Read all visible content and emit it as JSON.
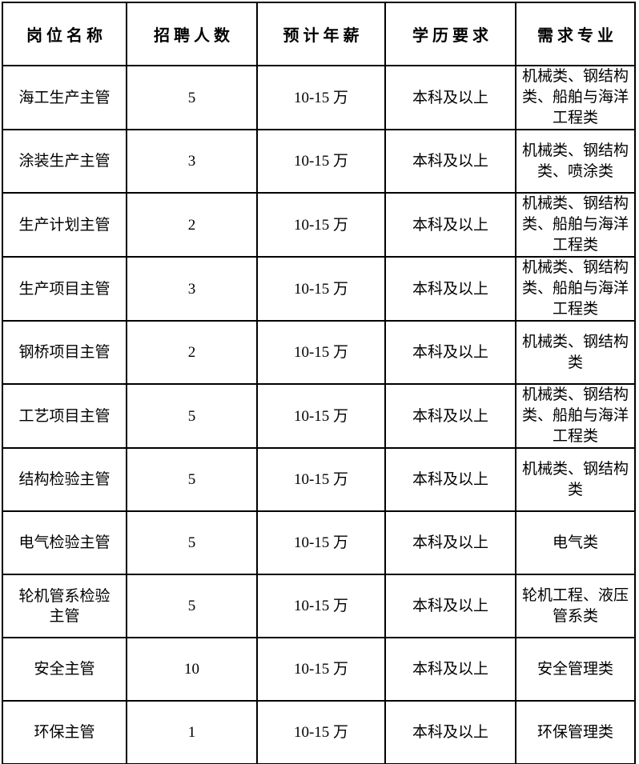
{
  "colors": {
    "background": "#ffffff",
    "border": "#000000",
    "text": "#000000"
  },
  "table": {
    "headers": [
      "岗位名称",
      "招聘人数",
      "预计年薪",
      "学历要求",
      "需求专业"
    ],
    "column_names": [
      "position",
      "headcount",
      "salary",
      "education",
      "major"
    ],
    "rows": [
      [
        "海工生产主管",
        "5",
        "10-15 万",
        "本科及以上",
        "机械类、钢结构类、船舶与海洋工程类"
      ],
      [
        "涂装生产主管",
        "3",
        "10-15 万",
        "本科及以上",
        "机械类、钢结构类、喷涂类"
      ],
      [
        "生产计划主管",
        "2",
        "10-15 万",
        "本科及以上",
        "机械类、钢结构类、船舶与海洋工程类"
      ],
      [
        "生产项目主管",
        "3",
        "10-15 万",
        "本科及以上",
        "机械类、钢结构类、船舶与海洋工程类"
      ],
      [
        "钢桥项目主管",
        "2",
        "10-15 万",
        "本科及以上",
        "机械类、钢结构类"
      ],
      [
        "工艺项目主管",
        "5",
        "10-15 万",
        "本科及以上",
        "机械类、钢结构类、船舶与海洋工程类"
      ],
      [
        "结构检验主管",
        "5",
        "10-15 万",
        "本科及以上",
        "机械类、钢结构类"
      ],
      [
        "电气检验主管",
        "5",
        "10-15 万",
        "本科及以上",
        "电气类"
      ],
      [
        "轮机管系检验主管",
        "5",
        "10-15 万",
        "本科及以上",
        "轮机工程、液压管系类"
      ],
      [
        "安全主管",
        "10",
        "10-15 万",
        "本科及以上",
        "安全管理类"
      ],
      [
        "环保主管",
        "1",
        "10-15 万",
        "本科及以上",
        "环保管理类"
      ]
    ]
  }
}
